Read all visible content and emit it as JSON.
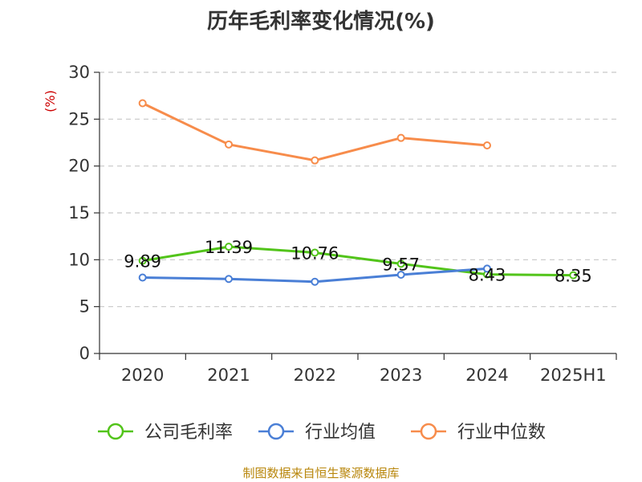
{
  "chart_data": {
    "type": "line",
    "title": "历年毛利率变化情况(%)",
    "ylabel": "(%)",
    "xlabel": "",
    "categories": [
      "2020",
      "2021",
      "2022",
      "2023",
      "2024",
      "2025H1"
    ],
    "ylim": [
      0,
      30
    ],
    "yticks": [
      0,
      5,
      10,
      15,
      20,
      25,
      30
    ],
    "grid": true,
    "legend_position": "bottom",
    "series": [
      {
        "name": "公司毛利率",
        "color": "#52c41a",
        "values": [
          9.89,
          11.39,
          10.76,
          9.57,
          8.43,
          8.35
        ],
        "labels": [
          "9.89",
          "11.39",
          "10.76",
          "9.57",
          "8.43",
          "8.35"
        ]
      },
      {
        "name": "行业均值",
        "color": "#4a7fd6",
        "values": [
          8.1,
          7.95,
          7.65,
          8.4,
          9.05,
          null
        ]
      },
      {
        "name": "行业中位数",
        "color": "#f78c4b",
        "values": [
          26.7,
          22.3,
          20.6,
          23.0,
          22.2,
          null
        ]
      }
    ]
  },
  "source": "制图数据来自恒生聚源数据库"
}
